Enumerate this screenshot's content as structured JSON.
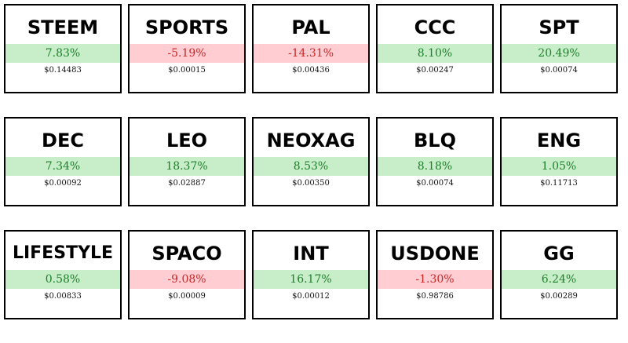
{
  "tickers": [
    {
      "symbol": "STEEM",
      "change": "7.83%",
      "price": "$0.14483",
      "direction": "up"
    },
    {
      "symbol": "SPORTS",
      "change": "-5.19%",
      "price": "$0.00015",
      "direction": "down"
    },
    {
      "symbol": "PAL",
      "change": "-14.31%",
      "price": "$0.00436",
      "direction": "down"
    },
    {
      "symbol": "CCC",
      "change": "8.10%",
      "price": "$0.00247",
      "direction": "up"
    },
    {
      "symbol": "SPT",
      "change": "20.49%",
      "price": "$0.00074",
      "direction": "up"
    },
    {
      "symbol": "DEC",
      "change": "7.34%",
      "price": "$0.00092",
      "direction": "up"
    },
    {
      "symbol": "LEO",
      "change": "18.37%",
      "price": "$0.02887",
      "direction": "up"
    },
    {
      "symbol": "NEOXAG",
      "change": "8.53%",
      "price": "$0.00350",
      "direction": "up"
    },
    {
      "symbol": "BLQ",
      "change": "8.18%",
      "price": "$0.00074",
      "direction": "up"
    },
    {
      "symbol": "ENG",
      "change": "1.05%",
      "price": "$0.11713",
      "direction": "up"
    },
    {
      "symbol": "LIFESTYLE",
      "change": "0.58%",
      "price": "$0.00833",
      "direction": "up"
    },
    {
      "symbol": "SPACO",
      "change": "-9.08%",
      "price": "$0.00009",
      "direction": "down"
    },
    {
      "symbol": "INT",
      "change": "16.17%",
      "price": "$0.00012",
      "direction": "up"
    },
    {
      "symbol": "USDONE",
      "change": "-1.30%",
      "price": "$0.98786",
      "direction": "down"
    },
    {
      "symbol": "GG",
      "change": "6.24%",
      "price": "$0.00289",
      "direction": "up"
    }
  ],
  "colors": {
    "up_bg": "#c8edc9",
    "up_text": "#1e7f2b",
    "down_bg": "#ffcdd2",
    "down_text": "#c62828",
    "border": "#000000"
  }
}
